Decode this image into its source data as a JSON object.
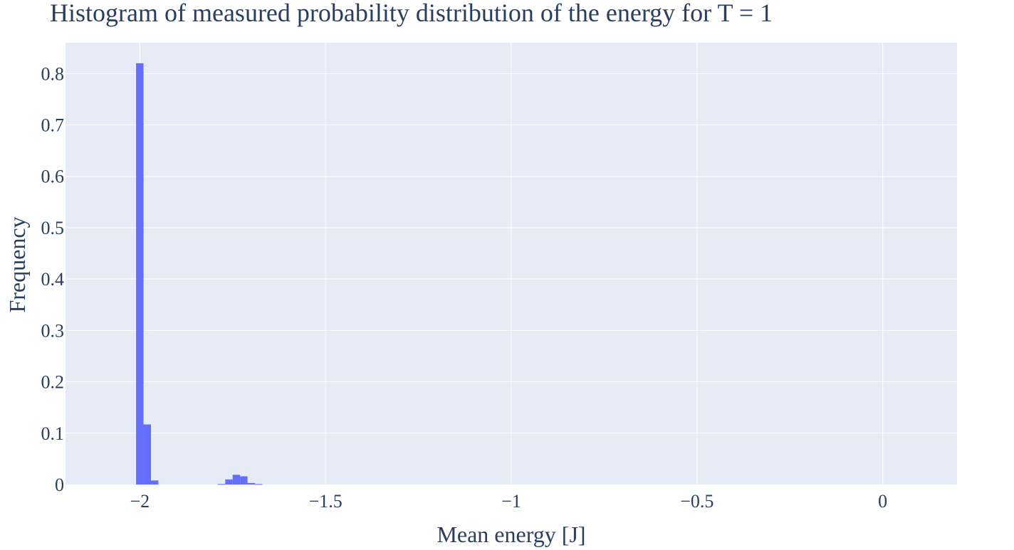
{
  "chart_data": {
    "type": "bar",
    "title": "Histogram of measured probability distribution of the energy for T = 1",
    "xlabel": "Mean energy [J]",
    "ylabel": "Frequency",
    "xlim": [
      -2.2,
      0.2
    ],
    "ylim": [
      0,
      0.86
    ],
    "bin_width": 0.02,
    "grid": true,
    "x_ticks": [
      {
        "value": -2,
        "label": "−2"
      },
      {
        "value": -1.5,
        "label": "−1.5"
      },
      {
        "value": -1,
        "label": "−1"
      },
      {
        "value": -0.5,
        "label": "−0.5"
      },
      {
        "value": 0,
        "label": "0"
      }
    ],
    "y_ticks": [
      {
        "value": 0,
        "label": "0"
      },
      {
        "value": 0.1,
        "label": "0.1"
      },
      {
        "value": 0.2,
        "label": "0.2"
      },
      {
        "value": 0.3,
        "label": "0.3"
      },
      {
        "value": 0.4,
        "label": "0.4"
      },
      {
        "value": 0.5,
        "label": "0.5"
      },
      {
        "value": 0.6,
        "label": "0.6"
      },
      {
        "value": 0.7,
        "label": "0.7"
      },
      {
        "value": 0.8,
        "label": "0.8"
      }
    ],
    "x": [
      -2.0,
      -1.98,
      -1.96,
      -1.78,
      -1.76,
      -1.74,
      -1.72,
      -1.7,
      -1.68
    ],
    "values": [
      0.82,
      0.117,
      0.008,
      0.001,
      0.01,
      0.019,
      0.016,
      0.003,
      0.001
    ],
    "colors": {
      "bar": "#636efa",
      "plot_bg": "#e5ecf6",
      "grid": "#ffffff",
      "text": "#2a3f5f"
    }
  }
}
